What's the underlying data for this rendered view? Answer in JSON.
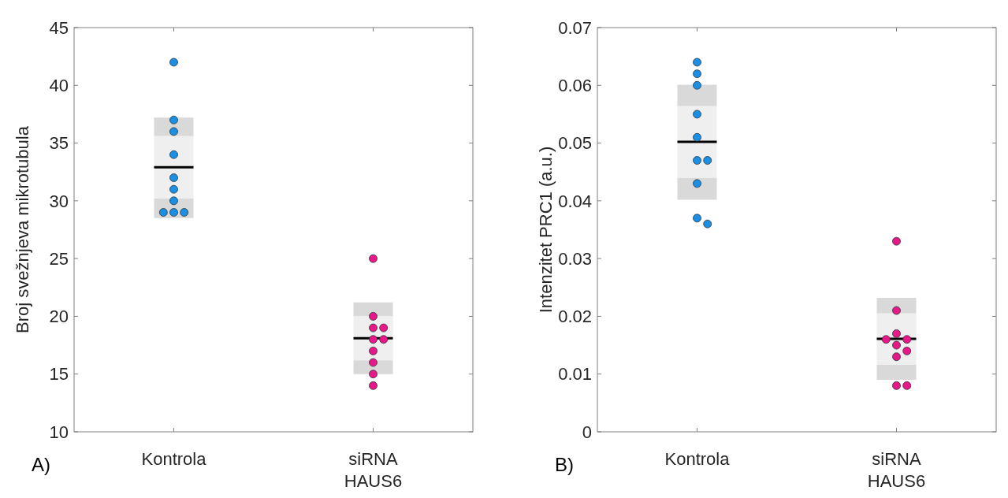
{
  "chart_data": [
    {
      "type": "box",
      "ylabel": "Broj svežnjeva mikrotubula",
      "categories": [
        "Kontrola",
        "siRNA HAUS6"
      ],
      "ylim": [
        10,
        45
      ],
      "yticks": [
        10,
        15,
        20,
        25,
        30,
        35,
        40,
        45
      ],
      "grid": false,
      "annotations": [
        "A)"
      ],
      "boxes": [
        {
          "low": 28.5,
          "q1": 30.2,
          "median": 32.9,
          "q3": 35.6,
          "high": 37.2
        },
        {
          "low": 15.0,
          "q1": 16.2,
          "median": 18.1,
          "q3": 20.0,
          "high": 21.2
        }
      ],
      "series": [
        {
          "type": "scatter",
          "color": "#1a8fe3",
          "x": [
            "Kontrola",
            "Kontrola",
            "Kontrola",
            "Kontrola",
            "Kontrola",
            "Kontrola",
            "Kontrola",
            "Kontrola",
            "Kontrola",
            "Kontrola"
          ],
          "values": [
            42,
            37,
            36,
            34,
            32,
            31,
            30,
            29,
            29,
            29
          ]
        },
        {
          "type": "scatter",
          "color": "#e8178a",
          "x": [
            "siRNA HAUS6",
            "siRNA HAUS6",
            "siRNA HAUS6",
            "siRNA HAUS6",
            "siRNA HAUS6",
            "siRNA HAUS6",
            "siRNA HAUS6",
            "siRNA HAUS6",
            "siRNA HAUS6",
            "siRNA HAUS6"
          ],
          "values": [
            25,
            20,
            19,
            19,
            18,
            18,
            17,
            16,
            15,
            14
          ]
        }
      ]
    },
    {
      "type": "box",
      "ylabel": "Intenzitet PRC1 (a.u.)",
      "categories": [
        "Kontrola",
        "siRNA HAUS6"
      ],
      "ylim": [
        0,
        0.07
      ],
      "yticks": [
        0,
        0.01,
        0.02,
        0.03,
        0.04,
        0.05,
        0.06,
        0.07
      ],
      "grid": false,
      "annotations": [
        "B)"
      ],
      "boxes": [
        {
          "low": 0.0402,
          "q1": 0.044,
          "median": 0.0502,
          "q3": 0.0564,
          "high": 0.0601
        },
        {
          "low": 0.009,
          "q1": 0.0116,
          "median": 0.0161,
          "q3": 0.0205,
          "high": 0.0232
        }
      ],
      "series": [
        {
          "type": "scatter",
          "color": "#1a8fe3",
          "x": [
            "Kontrola",
            "Kontrola",
            "Kontrola",
            "Kontrola",
            "Kontrola",
            "Kontrola",
            "Kontrola",
            "Kontrola",
            "Kontrola",
            "Kontrola"
          ],
          "values": [
            0.064,
            0.062,
            0.06,
            0.055,
            0.051,
            0.047,
            0.047,
            0.043,
            0.037,
            0.036
          ]
        },
        {
          "type": "scatter",
          "color": "#e8178a",
          "x": [
            "siRNA HAUS6",
            "siRNA HAUS6",
            "siRNA HAUS6",
            "siRNA HAUS6",
            "siRNA HAUS6",
            "siRNA HAUS6",
            "siRNA HAUS6",
            "siRNA HAUS6",
            "siRNA HAUS6",
            "siRNA HAUS6"
          ],
          "values": [
            0.033,
            0.021,
            0.017,
            0.016,
            0.016,
            0.015,
            0.014,
            0.013,
            0.008,
            0.008
          ]
        }
      ]
    }
  ]
}
